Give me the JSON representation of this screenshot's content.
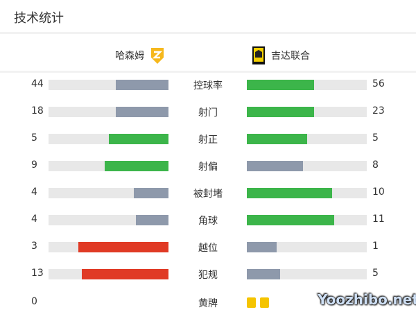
{
  "title": "技术统计",
  "home": {
    "name": "哈森姆"
  },
  "away": {
    "name": "吉达联合"
  },
  "colors": {
    "green": "#3cb54a",
    "gray": "#8e99ab",
    "red": "#e03a25",
    "card": "#f5c400"
  },
  "stats": [
    {
      "label": "控球率",
      "home": "44",
      "away": "56",
      "home_pct": 44,
      "away_pct": 56,
      "home_color": "#8e99ab",
      "away_color": "#3cb54a"
    },
    {
      "label": "射门",
      "home": "18",
      "away": "23",
      "home_pct": 44,
      "away_pct": 56,
      "home_color": "#8e99ab",
      "away_color": "#3cb54a"
    },
    {
      "label": "射正",
      "home": "5",
      "away": "5",
      "home_pct": 50,
      "away_pct": 50,
      "home_color": "#3cb54a",
      "away_color": "#3cb54a"
    },
    {
      "label": "射偏",
      "home": "9",
      "away": "8",
      "home_pct": 53,
      "away_pct": 47,
      "home_color": "#3cb54a",
      "away_color": "#8e99ab"
    },
    {
      "label": "被封堵",
      "home": "4",
      "away": "10",
      "home_pct": 29,
      "away_pct": 71,
      "home_color": "#8e99ab",
      "away_color": "#3cb54a"
    },
    {
      "label": "角球",
      "home": "4",
      "away": "11",
      "home_pct": 27,
      "away_pct": 73,
      "home_color": "#8e99ab",
      "away_color": "#3cb54a"
    },
    {
      "label": "越位",
      "home": "3",
      "away": "1",
      "home_pct": 75,
      "away_pct": 25,
      "home_color": "#e03a25",
      "away_color": "#8e99ab"
    },
    {
      "label": "犯规",
      "home": "13",
      "away": "5",
      "home_pct": 72,
      "away_pct": 28,
      "home_color": "#e03a25",
      "away_color": "#8e99ab"
    }
  ],
  "yellow": {
    "label": "黄牌",
    "home": "0",
    "away_cards": 2
  },
  "watermark": "Yoozhibo.net"
}
